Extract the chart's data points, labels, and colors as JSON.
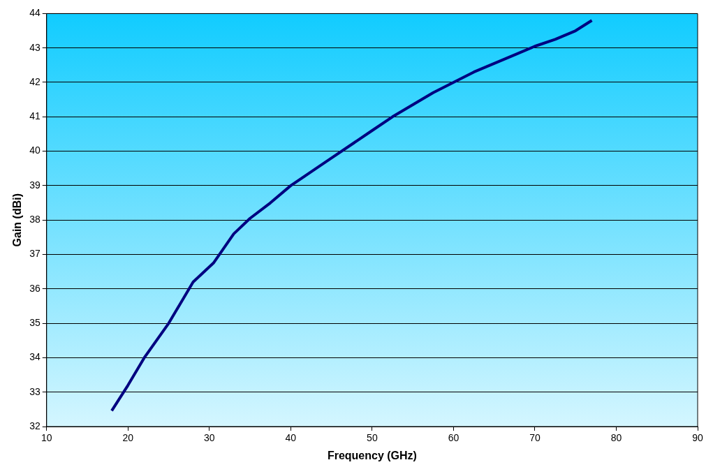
{
  "chart_data": {
    "type": "line",
    "xlabel": "Frequency (GHz)",
    "ylabel": "Gain (dBi)",
    "xlim": [
      10,
      90
    ],
    "xticks": [
      10,
      20,
      30,
      40,
      50,
      60,
      70,
      80,
      90
    ],
    "ylim": [
      32,
      44
    ],
    "yticks": [
      32,
      33,
      34,
      35,
      36,
      37,
      38,
      39,
      40,
      41,
      42,
      43,
      44
    ],
    "grid": "y",
    "legend": false,
    "marker": "none",
    "line_style": "solid",
    "series": [
      {
        "color": "#000080",
        "x": [
          18,
          20,
          22,
          25,
          28,
          30.5,
          33,
          35,
          37.5,
          40,
          42.5,
          45,
          47.5,
          50,
          52.5,
          55,
          57.5,
          60,
          62.5,
          65,
          67.5,
          70,
          72.5,
          75,
          77
        ],
        "values": [
          32.46,
          33.2,
          34.0,
          35.0,
          36.2,
          36.75,
          37.6,
          38.05,
          38.5,
          39.0,
          39.4,
          39.8,
          40.2,
          40.6,
          41.0,
          41.35,
          41.7,
          42.0,
          42.3,
          42.55,
          42.8,
          43.05,
          43.25,
          43.5,
          43.8
        ]
      }
    ]
  }
}
